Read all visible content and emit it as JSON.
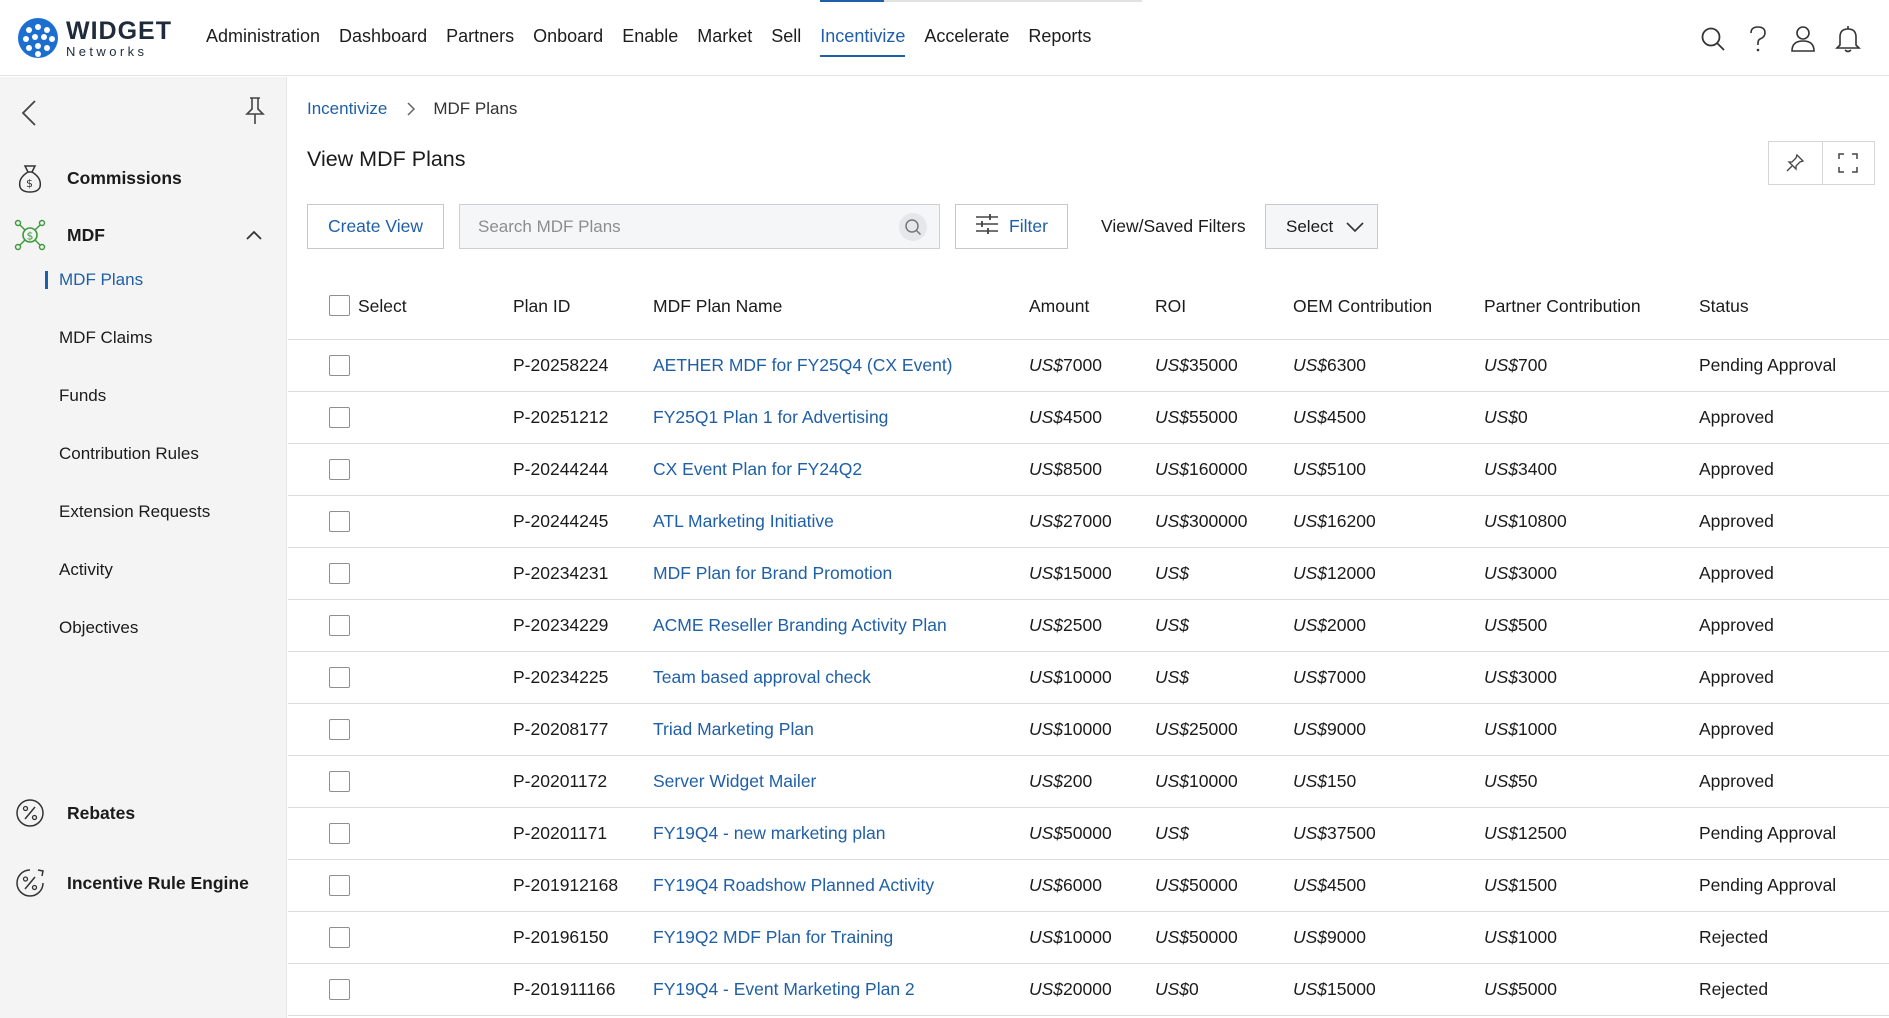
{
  "logo": {
    "line1": "WIDGET",
    "line2": "Networks"
  },
  "nav": [
    {
      "label": "Administration",
      "active": false
    },
    {
      "label": "Dashboard",
      "active": false
    },
    {
      "label": "Partners",
      "active": false
    },
    {
      "label": "Onboard",
      "active": false
    },
    {
      "label": "Enable",
      "active": false
    },
    {
      "label": "Market",
      "active": false
    },
    {
      "label": "Sell",
      "active": false
    },
    {
      "label": "Incentivize",
      "active": true
    },
    {
      "label": "Accelerate",
      "active": false
    },
    {
      "label": "Reports",
      "active": false
    }
  ],
  "top_icons": [
    "search-icon",
    "help-icon",
    "user-icon",
    "bell-icon"
  ],
  "sidebar": {
    "sections": [
      {
        "label": "Commissions",
        "icon": "money-bag-icon"
      },
      {
        "label": "MDF",
        "icon": "network-dollar-icon",
        "expanded": true
      },
      {
        "label": "Rebates",
        "icon": "percent-icon"
      },
      {
        "label": "Incentive Rule Engine",
        "icon": "percent-gear-icon"
      }
    ],
    "mdf_items": [
      {
        "label": "MDF Plans",
        "active": true
      },
      {
        "label": "MDF Claims",
        "active": false
      },
      {
        "label": "Funds",
        "active": false
      },
      {
        "label": "Contribution Rules",
        "active": false
      },
      {
        "label": "Extension Requests",
        "active": false
      },
      {
        "label": "Activity",
        "active": false
      },
      {
        "label": "Objectives",
        "active": false
      }
    ]
  },
  "breadcrumb": {
    "parent": "Incentivize",
    "current": "MDF Plans"
  },
  "page": {
    "title": "View MDF Plans"
  },
  "toolbar": {
    "create_view": "Create View",
    "search_placeholder": "Search MDF Plans",
    "filter": "Filter",
    "saved_filters_label": "View/Saved Filters",
    "saved_filters_value": "Select"
  },
  "table": {
    "columns": {
      "select": "Select",
      "plan_id": "Plan ID",
      "name": "MDF Plan Name",
      "amount": "Amount",
      "roi": "ROI",
      "oem": "OEM Contribution",
      "partner": "Partner Contribution",
      "status": "Status"
    },
    "currency": "US$",
    "rows": [
      {
        "id": "P-20258224",
        "name": "AETHER MDF for FY25Q4 (CX Event)",
        "amount": "7000",
        "roi": "35000",
        "oem": "6300",
        "partner": "700",
        "status": "Pending Approval"
      },
      {
        "id": "P-20251212",
        "name": "FY25Q1 Plan 1 for Advertising",
        "amount": "4500",
        "roi": "55000",
        "oem": "4500",
        "partner": "0",
        "status": "Approved"
      },
      {
        "id": "P-20244244",
        "name": "CX Event Plan for FY24Q2",
        "amount": "8500",
        "roi": "160000",
        "oem": "5100",
        "partner": "3400",
        "status": "Approved"
      },
      {
        "id": "P-20244245",
        "name": "ATL Marketing Initiative",
        "amount": "27000",
        "roi": "300000",
        "oem": "16200",
        "partner": "10800",
        "status": "Approved"
      },
      {
        "id": "P-20234231",
        "name": "MDF Plan for Brand Promotion",
        "amount": "15000",
        "roi": "",
        "oem": "12000",
        "partner": "3000",
        "status": "Approved"
      },
      {
        "id": "P-20234229",
        "name": "ACME Reseller Branding Activity Plan",
        "amount": "2500",
        "roi": "",
        "oem": "2000",
        "partner": "500",
        "status": "Approved"
      },
      {
        "id": "P-20234225",
        "name": "Team based approval check",
        "amount": "10000",
        "roi": "",
        "oem": "7000",
        "partner": "3000",
        "status": "Approved"
      },
      {
        "id": "P-20208177",
        "name": "Triad Marketing Plan",
        "amount": "10000",
        "roi": "25000",
        "oem": "9000",
        "partner": "1000",
        "status": "Approved"
      },
      {
        "id": "P-20201172",
        "name": "Server Widget Mailer",
        "amount": "200",
        "roi": "10000",
        "oem": "150",
        "partner": "50",
        "status": "Approved"
      },
      {
        "id": "P-20201171",
        "name": "FY19Q4 - new marketing plan",
        "amount": "50000",
        "roi": "",
        "oem": "37500",
        "partner": "12500",
        "status": "Pending Approval"
      },
      {
        "id": "P-201912168",
        "name": "FY19Q4 Roadshow Planned Activity",
        "amount": "6000",
        "roi": "50000",
        "oem": "4500",
        "partner": "1500",
        "status": "Pending Approval"
      },
      {
        "id": "P-20196150",
        "name": "FY19Q2 MDF Plan for Training",
        "amount": "10000",
        "roi": "50000",
        "oem": "9000",
        "partner": "1000",
        "status": "Rejected"
      },
      {
        "id": "P-201911166",
        "name": "FY19Q4 - Event Marketing Plan 2",
        "amount": "20000",
        "roi": "0",
        "oem": "15000",
        "partner": "5000",
        "status": "Rejected"
      }
    ]
  },
  "colors": {
    "accent": "#1f5fa8",
    "logo": "#1c6fd1",
    "sidebar_bg": "#f4f4f4",
    "mdf_icon": "#3a9a3a"
  }
}
